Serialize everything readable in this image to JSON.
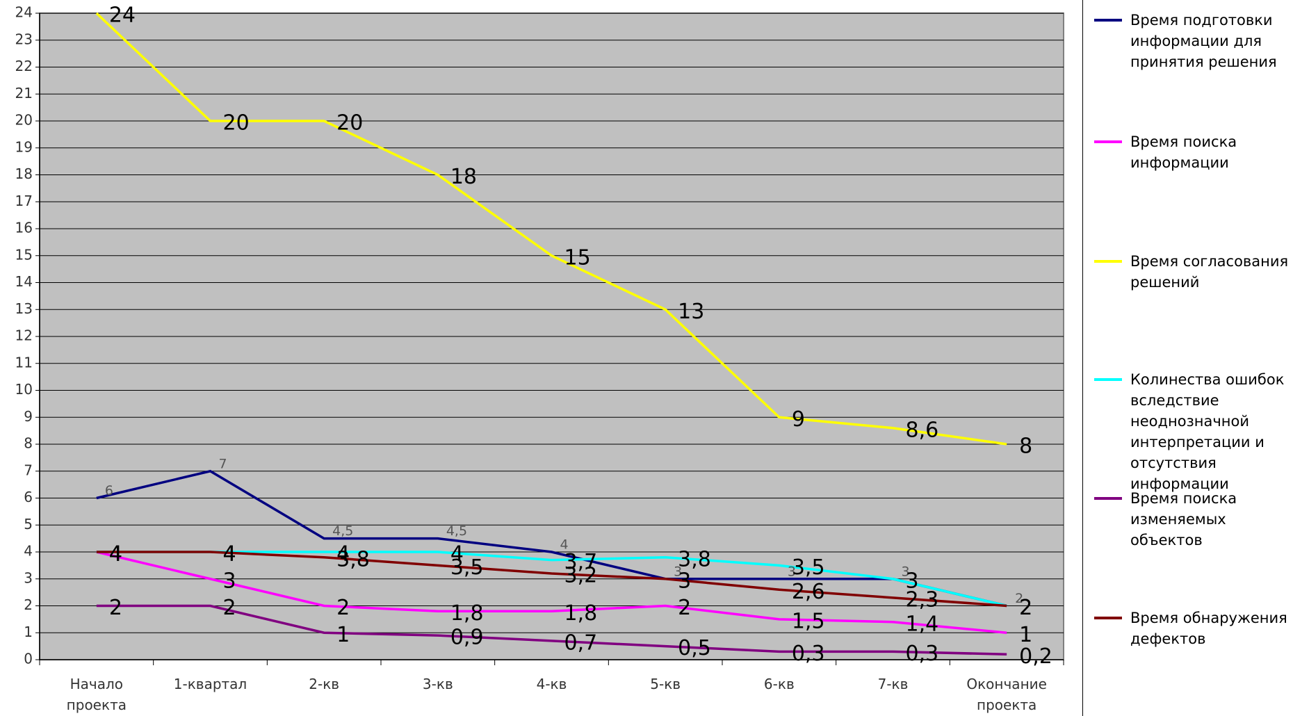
{
  "chart_data": {
    "type": "line",
    "categories": [
      "Начало проекта",
      "1-квартал",
      "2-кв",
      "3-кв",
      "4-кв",
      "5-кв",
      "6-кв",
      "7-кв",
      "Окончание проекта"
    ],
    "ylim": [
      0,
      24
    ],
    "yticks": [
      0,
      1,
      2,
      3,
      4,
      5,
      6,
      7,
      8,
      9,
      10,
      11,
      12,
      13,
      14,
      15,
      16,
      17,
      18,
      19,
      20,
      21,
      22,
      23,
      24
    ],
    "grid": true,
    "series": [
      {
        "name": "Время подготовки информации для принятия решения",
        "color": "#000080",
        "values": [
          6,
          7,
          4.5,
          4.5,
          4,
          3,
          3,
          3,
          2
        ],
        "value_labels": [
          "6",
          "7",
          "4,5",
          "4,5",
          "4",
          "3",
          "3",
          "3",
          "2"
        ]
      },
      {
        "name": "Время поиска информации",
        "color": "#ff00ff",
        "values": [
          4,
          3,
          2,
          1.8,
          1.8,
          2,
          1.5,
          1.4,
          1
        ],
        "value_labels": [
          "4",
          "3",
          "2",
          "1,8",
          "1,8",
          "2",
          "1,5",
          "1,4",
          "1"
        ]
      },
      {
        "name": "Время согласования решений",
        "color": "#ffff00",
        "values": [
          24,
          20,
          20,
          18,
          15,
          13,
          9,
          8.6,
          8
        ],
        "value_labels": [
          "24",
          "20",
          "20",
          "18",
          "15",
          "13",
          "9",
          "8,6",
          "8"
        ]
      },
      {
        "name": "Колинества ошибок вследствие неоднозначной интерпретации и отсутствия информации",
        "color": "#00ffff",
        "values": [
          4,
          4,
          4,
          4,
          3.7,
          3.8,
          3.5,
          3,
          2
        ],
        "value_labels": [
          "4",
          "4",
          "4",
          "4",
          "3,7",
          "3,8",
          "3,5",
          "3",
          "2"
        ]
      },
      {
        "name": "Время поиска изменяемых объектов",
        "color": "#800080",
        "values": [
          2,
          2,
          1,
          0.9,
          0.7,
          0.5,
          0.3,
          0.3,
          0.2
        ],
        "value_labels": [
          "2",
          "2",
          "1",
          "0,9",
          "0,7",
          "0,5",
          "0,3",
          "0,3",
          "0,2"
        ]
      },
      {
        "name": "Время обнаружения дефектов",
        "color": "#800000",
        "values": [
          4,
          4,
          3.8,
          3.5,
          3.2,
          3,
          2.6,
          2.3,
          2
        ],
        "value_labels": [
          "4",
          "4",
          "3,8",
          "3,5",
          "3,2",
          "3",
          "2,6",
          "2,3",
          "2"
        ]
      }
    ]
  }
}
